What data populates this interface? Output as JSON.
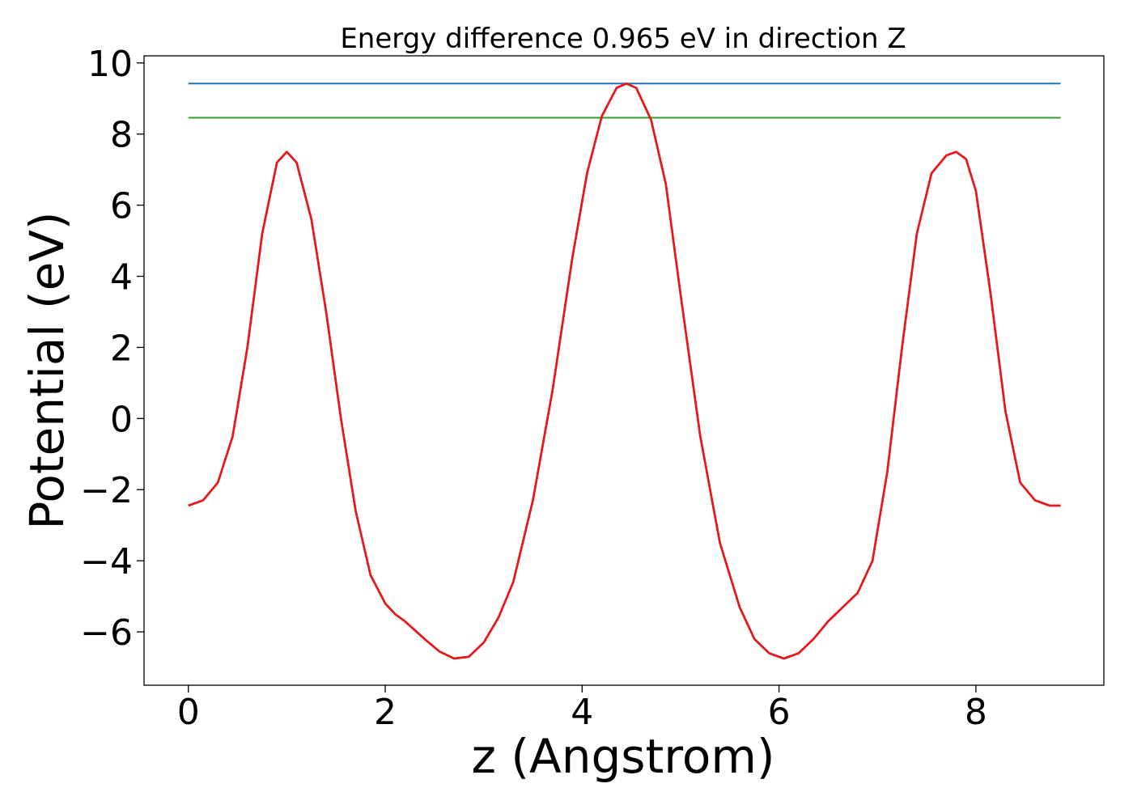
{
  "chart_data": {
    "type": "line",
    "title": "Energy difference 0.965 eV in direction Z",
    "xlabel": "z (Angstrom)",
    "ylabel": "Potential (eV)",
    "xlim": [
      -0.45,
      9.3
    ],
    "ylim": [
      -7.5,
      10.2
    ],
    "xticks": [
      0,
      2,
      4,
      6,
      8
    ],
    "yticks": [
      -6,
      -4,
      -2,
      0,
      2,
      4,
      6,
      8,
      10
    ],
    "xtick_labels": [
      "0",
      "2",
      "4",
      "6",
      "8"
    ],
    "ytick_labels": [
      "−6",
      "−4",
      "−2",
      "0",
      "2",
      "4",
      "6",
      "8",
      "10"
    ],
    "grid": false,
    "legend": "none",
    "series": [
      {
        "color": "#1f77b4",
        "x": [
          0,
          8.86
        ],
        "y": [
          9.42,
          9.42
        ]
      },
      {
        "color": "#2ca02c",
        "x": [
          0,
          8.86
        ],
        "y": [
          8.46,
          8.46
        ]
      },
      {
        "color": "#e41a1c",
        "x": [
          0,
          0.15,
          0.3,
          0.45,
          0.6,
          0.75,
          0.9,
          1.0,
          1.1,
          1.25,
          1.4,
          1.55,
          1.7,
          1.85,
          2.0,
          2.1,
          2.2,
          2.4,
          2.55,
          2.7,
          2.85,
          3.0,
          3.15,
          3.3,
          3.5,
          3.7,
          3.9,
          4.05,
          4.2,
          4.35,
          4.45,
          4.55,
          4.7,
          4.85,
          5.0,
          5.2,
          5.4,
          5.6,
          5.75,
          5.9,
          6.05,
          6.2,
          6.35,
          6.5,
          6.65,
          6.8,
          6.95,
          7.1,
          7.25,
          7.4,
          7.55,
          7.7,
          7.8,
          7.9,
          8.0,
          8.15,
          8.3,
          8.45,
          8.6,
          8.75,
          8.86
        ],
        "y": [
          -2.45,
          -2.3,
          -1.8,
          -0.5,
          2.0,
          5.2,
          7.2,
          7.5,
          7.2,
          5.6,
          3.0,
          0.0,
          -2.6,
          -4.4,
          -5.2,
          -5.5,
          -5.7,
          -6.2,
          -6.55,
          -6.75,
          -6.7,
          -6.3,
          -5.6,
          -4.6,
          -2.3,
          0.8,
          4.5,
          6.9,
          8.5,
          9.3,
          9.42,
          9.3,
          8.4,
          6.6,
          3.5,
          -0.5,
          -3.5,
          -5.3,
          -6.2,
          -6.6,
          -6.75,
          -6.6,
          -6.2,
          -5.7,
          -5.3,
          -4.9,
          -4.0,
          -1.5,
          2.0,
          5.2,
          6.9,
          7.4,
          7.5,
          7.3,
          6.4,
          3.5,
          0.2,
          -1.8,
          -2.3,
          -2.45,
          -2.45
        ]
      }
    ]
  }
}
